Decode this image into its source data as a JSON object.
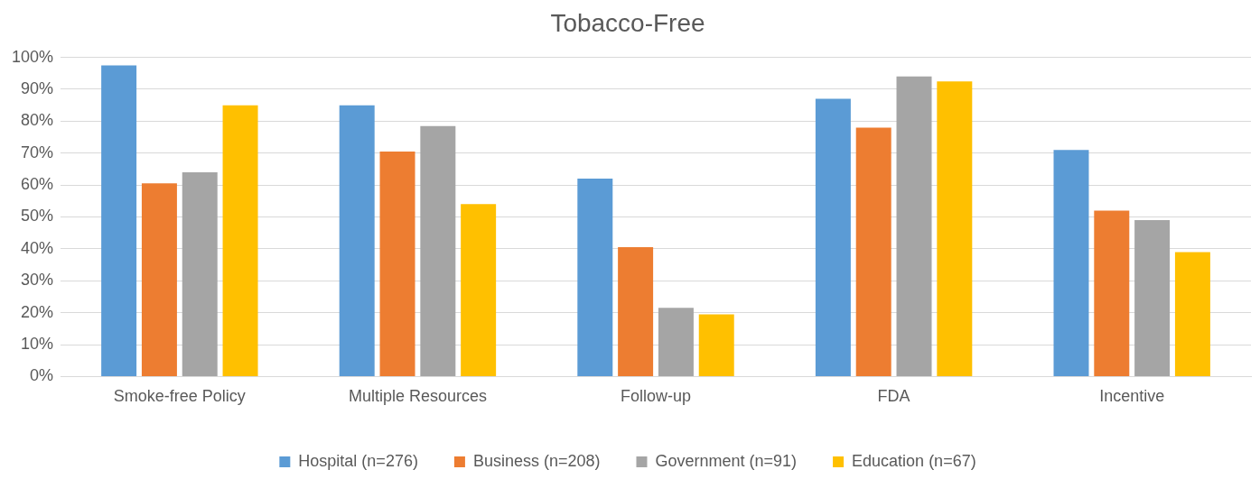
{
  "chart_data": {
    "type": "bar",
    "title": "Tobacco-Free",
    "categories": [
      "Smoke-free Policy",
      "Multiple Resources",
      "Follow-up",
      "FDA",
      "Incentive"
    ],
    "series": [
      {
        "name": "Hospital (n=276)",
        "color": "#5b9bd5",
        "values": [
          97.5,
          85,
          62,
          87,
          71
        ]
      },
      {
        "name": "Business (n=208)",
        "color": "#ed7d31",
        "values": [
          60.5,
          70.5,
          40.5,
          78,
          52
        ]
      },
      {
        "name": "Government (n=91)",
        "color": "#a5a5a5",
        "values": [
          64,
          78.5,
          21.5,
          94,
          49
        ]
      },
      {
        "name": "Education (n=67)",
        "color": "#ffc000",
        "values": [
          85,
          54,
          19.5,
          92.5,
          39
        ]
      }
    ],
    "ylim": [
      0,
      100
    ],
    "yticks": [
      {
        "value": 0,
        "label": "0%"
      },
      {
        "value": 10,
        "label": "10%"
      },
      {
        "value": 20,
        "label": "20%"
      },
      {
        "value": 30,
        "label": "30%"
      },
      {
        "value": 40,
        "label": "40%"
      },
      {
        "value": 50,
        "label": "50%"
      },
      {
        "value": 60,
        "label": "60%"
      },
      {
        "value": 70,
        "label": "70%"
      },
      {
        "value": 80,
        "label": "80%"
      },
      {
        "value": 90,
        "label": "90%"
      },
      {
        "value": 100,
        "label": "100%"
      }
    ],
    "grid": "y",
    "legend": "bottom"
  }
}
